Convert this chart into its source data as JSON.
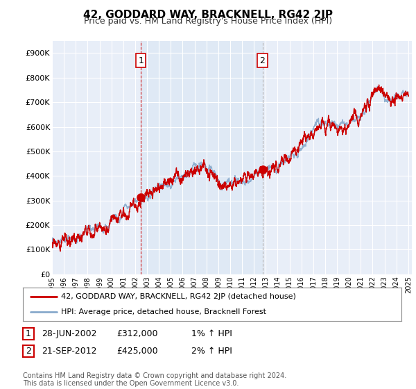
{
  "title": "42, GODDARD WAY, BRACKNELL, RG42 2JP",
  "subtitle": "Price paid vs. HM Land Registry's House Price Index (HPI)",
  "title_fontsize": 11,
  "subtitle_fontsize": 9,
  "background_color": "#ffffff",
  "plot_bg_color": "#e8eef8",
  "plot_bg_color2": "#d0dcf0",
  "grid_color": "#ffffff",
  "ylim": [
    0,
    950000
  ],
  "yticks": [
    0,
    100000,
    200000,
    300000,
    400000,
    500000,
    600000,
    700000,
    800000,
    900000
  ],
  "ytick_labels": [
    "£0",
    "£100K",
    "£200K",
    "£300K",
    "£400K",
    "£500K",
    "£600K",
    "£700K",
    "£800K",
    "£900K"
  ],
  "year_start": 1995,
  "year_end": 2025,
  "sale1_year": 2002.49,
  "sale1_price": 312000,
  "sale1_label": "1",
  "sale1_date": "28-JUN-2002",
  "sale2_year": 2012.72,
  "sale2_price": 425000,
  "sale2_label": "2",
  "sale2_date": "21-SEP-2012",
  "line_color_red": "#cc0000",
  "line_color_blue": "#88aacc",
  "vline1_color": "#cc0000",
  "vline2_color": "#aaaaaa",
  "marker_color": "#cc0000",
  "legend_label_red": "42, GODDARD WAY, BRACKNELL, RG42 2JP (detached house)",
  "legend_label_blue": "HPI: Average price, detached house, Bracknell Forest",
  "footer_text": "Contains HM Land Registry data © Crown copyright and database right 2024.\nThis data is licensed under the Open Government Licence v3.0.",
  "note1_date": "28-JUN-2002",
  "note1_price": "£312,000",
  "note1_hpi": "1% ↑ HPI",
  "note2_date": "21-SEP-2012",
  "note2_price": "£425,000",
  "note2_hpi": "2% ↑ HPI"
}
